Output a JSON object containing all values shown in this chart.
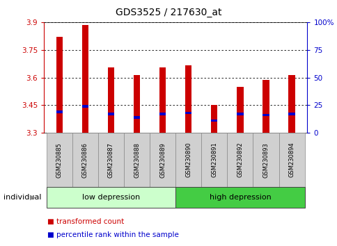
{
  "title": "GDS3525 / 217630_at",
  "samples": [
    "GSM230885",
    "GSM230886",
    "GSM230887",
    "GSM230888",
    "GSM230889",
    "GSM230890",
    "GSM230891",
    "GSM230892",
    "GSM230893",
    "GSM230894"
  ],
  "transformed_count": [
    3.82,
    3.885,
    3.655,
    3.615,
    3.655,
    3.665,
    3.45,
    3.55,
    3.585,
    3.615
  ],
  "percentile_rank": [
    19,
    24,
    17,
    14,
    17,
    18,
    11,
    17,
    16,
    17
  ],
  "ymin": 3.3,
  "ymax": 3.9,
  "yticks": [
    3.3,
    3.45,
    3.6,
    3.75,
    3.9
  ],
  "ytick_labels": [
    "3.3",
    "3.45",
    "3.6",
    "3.75",
    "3.9"
  ],
  "y2ticks": [
    0,
    25,
    50,
    75,
    100
  ],
  "y2tick_labels": [
    "0",
    "25",
    "50",
    "75",
    "100%"
  ],
  "bar_color": "#cc0000",
  "marker_color": "#0000cc",
  "bar_width": 0.25,
  "groups": [
    {
      "label": "low depression",
      "start": 0,
      "end": 5,
      "color": "#ccffcc"
    },
    {
      "label": "high depression",
      "start": 5,
      "end": 10,
      "color": "#44cc44"
    }
  ],
  "legend_items": [
    {
      "label": "transformed count",
      "color": "#cc0000"
    },
    {
      "label": "percentile rank within the sample",
      "color": "#0000cc"
    }
  ],
  "individual_label": "individual",
  "bg_color": "#ffffff",
  "plot_bg": "#ffffff",
  "tick_area_bg": "#d0d0d0",
  "left_yaxis_color": "#cc0000",
  "right_yaxis_color": "#0000cc"
}
